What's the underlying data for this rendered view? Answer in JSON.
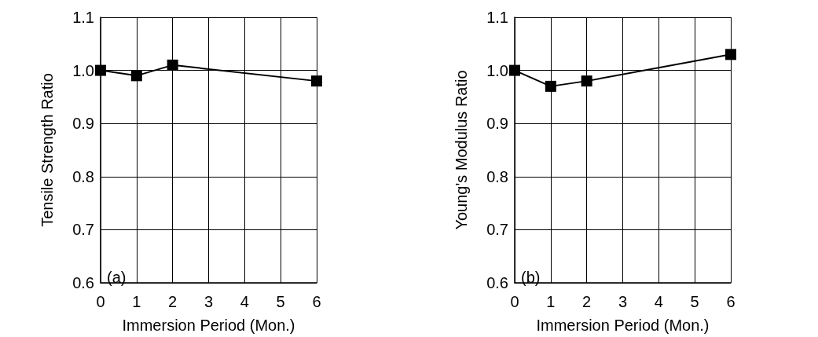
{
  "chart_data": [
    {
      "type": "line",
      "xlabel": "Immersion Period (Mon.)",
      "ylabel": "Tensile Strength Ratio",
      "annotations": [
        "(a)"
      ],
      "x": [
        0,
        1,
        2,
        6
      ],
      "series": [
        {
          "color": "#000000",
          "values": [
            1.0,
            0.99,
            1.01,
            0.98
          ]
        }
      ],
      "xlim": [
        0,
        6
      ],
      "xticks": [
        0,
        1,
        2,
        3,
        4,
        5,
        6
      ],
      "ylim": [
        0.6,
        1.1
      ],
      "yticks": [
        {
          "value": 0.6,
          "label": "0.6"
        },
        {
          "value": 0.7,
          "label": "0.7"
        },
        {
          "value": 0.8,
          "label": "0.8"
        },
        {
          "value": 0.9,
          "label": "0.9"
        },
        {
          "value": 1.0,
          "label": "1.0"
        },
        {
          "value": 1.1,
          "label": "1.1"
        }
      ],
      "grid": true,
      "marker": "square",
      "line_style": "solid"
    },
    {
      "type": "line",
      "xlabel": "Immersion Period (Mon.)",
      "ylabel": "Young's Modulus Ratio",
      "annotations": [
        "(b)"
      ],
      "x": [
        0,
        1,
        2,
        6
      ],
      "series": [
        {
          "color": "#000000",
          "values": [
            1.0,
            0.97,
            0.98,
            1.03
          ]
        }
      ],
      "xlim": [
        0,
        6
      ],
      "xticks": [
        0,
        1,
        2,
        3,
        4,
        5,
        6
      ],
      "ylim": [
        0.6,
        1.1
      ],
      "yticks": [
        {
          "value": 0.6,
          "label": "0.6"
        },
        {
          "value": 0.7,
          "label": "0.7"
        },
        {
          "value": 0.8,
          "label": "0.8"
        },
        {
          "value": 0.9,
          "label": "0.9"
        },
        {
          "value": 1.0,
          "label": "1.0"
        },
        {
          "value": 1.1,
          "label": "1.1"
        }
      ],
      "grid": true,
      "marker": "square",
      "line_style": "solid"
    }
  ]
}
